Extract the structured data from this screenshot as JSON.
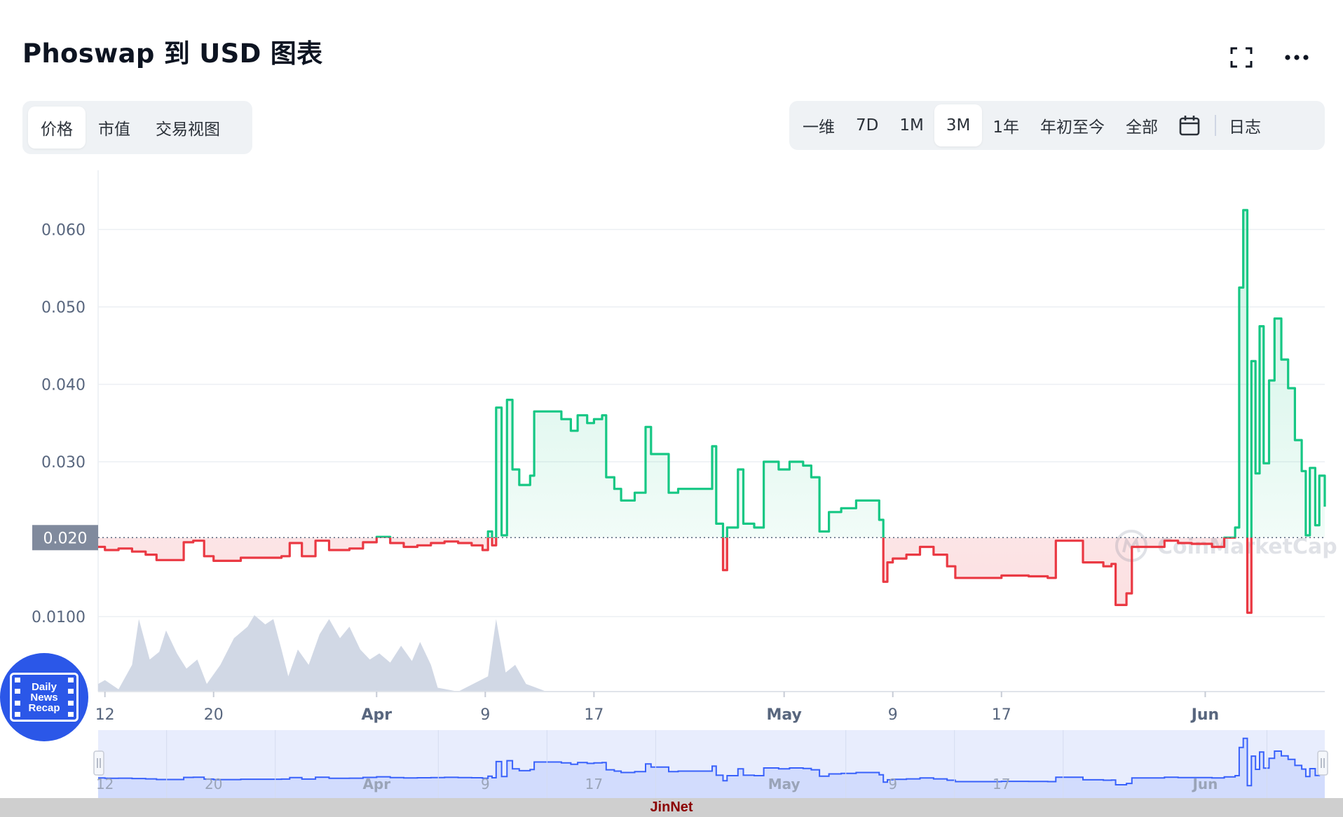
{
  "header": {
    "title": "Phoswap 到 USD 图表",
    "icons": [
      "fullscreen-icon",
      "more-icon"
    ]
  },
  "view_tabs": [
    {
      "label": "价格",
      "active": true
    },
    {
      "label": "市值",
      "active": false
    },
    {
      "label": "交易视图",
      "active": false
    }
  ],
  "range_tabs": [
    {
      "label": "一维",
      "active": false
    },
    {
      "label": "7D",
      "active": false
    },
    {
      "label": "1M",
      "active": false
    },
    {
      "label": "3M",
      "active": true
    },
    {
      "label": "1年",
      "active": false
    },
    {
      "label": "年初至今",
      "active": false
    },
    {
      "label": "全部",
      "active": false
    }
  ],
  "range_extra": {
    "calendar_icon": "calendar-icon",
    "log_label": "日志"
  },
  "chart_data": {
    "type": "line",
    "watermark": "CoinMarketCap",
    "baseline_price": 0.0202,
    "baseline_label": "0.020",
    "colors": {
      "up": "#16c784",
      "down": "#ea3943",
      "volume": "#cfd6e4",
      "navigator": "#3861fb"
    },
    "y_ticks": [
      {
        "value": 0.06,
        "label": "0.060"
      },
      {
        "value": 0.05,
        "label": "0.050"
      },
      {
        "value": 0.04,
        "label": "0.040"
      },
      {
        "value": 0.03,
        "label": "0.030"
      },
      {
        "value": 0.01,
        "label": "0.0100"
      }
    ],
    "x_ticks": [
      {
        "day": 12,
        "label": "12",
        "bold": false
      },
      {
        "day": 20,
        "label": "20",
        "bold": false
      },
      {
        "day": 32,
        "label": "Apr",
        "bold": true
      },
      {
        "day": 40,
        "label": "9",
        "bold": false
      },
      {
        "day": 48,
        "label": "17",
        "bold": false
      },
      {
        "day": 62,
        "label": "May",
        "bold": true
      },
      {
        "day": 70,
        "label": "9",
        "bold": false
      },
      {
        "day": 78,
        "label": "17",
        "bold": false
      },
      {
        "day": 93,
        "label": "Jun",
        "bold": true
      }
    ],
    "price": [
      [
        11.5,
        0.019
      ],
      [
        12,
        0.0186
      ],
      [
        13,
        0.0188
      ],
      [
        14,
        0.0184
      ],
      [
        15,
        0.018
      ],
      [
        15.8,
        0.0173
      ],
      [
        17,
        0.0173
      ],
      [
        17.8,
        0.0196
      ],
      [
        18.5,
        0.0198
      ],
      [
        19.3,
        0.0178
      ],
      [
        20,
        0.0172
      ],
      [
        22,
        0.0176
      ],
      [
        24,
        0.0176
      ],
      [
        25,
        0.0178
      ],
      [
        25.6,
        0.0195
      ],
      [
        26.5,
        0.0178
      ],
      [
        27.5,
        0.0198
      ],
      [
        28.5,
        0.0186
      ],
      [
        30,
        0.0188
      ],
      [
        31,
        0.0196
      ],
      [
        32,
        0.0203
      ],
      [
        33,
        0.0195
      ],
      [
        34,
        0.019
      ],
      [
        35,
        0.0192
      ],
      [
        36,
        0.0195
      ],
      [
        37,
        0.0197
      ],
      [
        38,
        0.0195
      ],
      [
        39,
        0.0192
      ],
      [
        39.8,
        0.0186
      ],
      [
        40.2,
        0.021
      ],
      [
        40.5,
        0.0192
      ],
      [
        40.8,
        0.037
      ],
      [
        41.2,
        0.0205
      ],
      [
        41.6,
        0.038
      ],
      [
        42,
        0.029
      ],
      [
        42.5,
        0.027
      ],
      [
        43.3,
        0.0282
      ],
      [
        43.6,
        0.0365
      ],
      [
        44.8,
        0.0365
      ],
      [
        45.6,
        0.0355
      ],
      [
        46.3,
        0.034
      ],
      [
        46.8,
        0.036
      ],
      [
        47.5,
        0.035
      ],
      [
        48,
        0.0355
      ],
      [
        48.6,
        0.036
      ],
      [
        48.9,
        0.028
      ],
      [
        49.5,
        0.0265
      ],
      [
        50,
        0.025
      ],
      [
        51,
        0.026
      ],
      [
        51.8,
        0.0345
      ],
      [
        52.2,
        0.031
      ],
      [
        53,
        0.031
      ],
      [
        53.5,
        0.026
      ],
      [
        54.2,
        0.0265
      ],
      [
        55.3,
        0.0265
      ],
      [
        56.5,
        0.0265
      ],
      [
        56.7,
        0.032
      ],
      [
        57,
        0.022
      ],
      [
        57.5,
        0.016
      ],
      [
        57.8,
        0.0215
      ],
      [
        58.6,
        0.029
      ],
      [
        59,
        0.022
      ],
      [
        59.8,
        0.0215
      ],
      [
        60.5,
        0.03
      ],
      [
        61.6,
        0.029
      ],
      [
        62.4,
        0.03
      ],
      [
        63.4,
        0.0295
      ],
      [
        64,
        0.028
      ],
      [
        64.6,
        0.021
      ],
      [
        65.3,
        0.0235
      ],
      [
        66.2,
        0.024
      ],
      [
        67.3,
        0.025
      ],
      [
        68.7,
        0.025
      ],
      [
        69,
        0.0225
      ],
      [
        69.3,
        0.0145
      ],
      [
        69.6,
        0.017
      ],
      [
        70,
        0.0175
      ],
      [
        71,
        0.018
      ],
      [
        72,
        0.019
      ],
      [
        73,
        0.018
      ],
      [
        74,
        0.0165
      ],
      [
        74.6,
        0.015
      ],
      [
        76,
        0.015
      ],
      [
        78,
        0.0153
      ],
      [
        80,
        0.0152
      ],
      [
        81.4,
        0.015
      ],
      [
        82,
        0.0198
      ],
      [
        83.4,
        0.0198
      ],
      [
        84,
        0.017
      ],
      [
        85.5,
        0.0165
      ],
      [
        86.1,
        0.0168
      ],
      [
        86.4,
        0.0115
      ],
      [
        87.2,
        0.013
      ],
      [
        87.6,
        0.019
      ],
      [
        88.6,
        0.019
      ],
      [
        90,
        0.0198
      ],
      [
        91,
        0.0195
      ],
      [
        92,
        0.0194
      ],
      [
        93.5,
        0.019
      ],
      [
        94.4,
        0.0202
      ],
      [
        95.2,
        0.0215
      ],
      [
        95.5,
        0.0525
      ],
      [
        95.8,
        0.0625
      ],
      [
        96.1,
        0.0105
      ],
      [
        96.4,
        0.043
      ],
      [
        96.7,
        0.0285
      ],
      [
        97,
        0.0475
      ],
      [
        97.3,
        0.0298
      ],
      [
        97.7,
        0.0405
      ],
      [
        98.1,
        0.0485
      ],
      [
        98.6,
        0.0432
      ],
      [
        99.1,
        0.0395
      ],
      [
        99.6,
        0.0328
      ],
      [
        100.1,
        0.0288
      ],
      [
        100.4,
        0.0205
      ],
      [
        100.7,
        0.0292
      ],
      [
        101.1,
        0.0218
      ],
      [
        101.4,
        0.0282
      ],
      [
        101.8,
        0.0242
      ]
    ],
    "volume": [
      [
        11.5,
        0.1
      ],
      [
        12,
        0.15
      ],
      [
        13,
        0.03
      ],
      [
        14,
        0.35
      ],
      [
        14.5,
        0.95
      ],
      [
        15.3,
        0.42
      ],
      [
        16,
        0.52
      ],
      [
        16.5,
        0.8
      ],
      [
        17.3,
        0.5
      ],
      [
        18,
        0.3
      ],
      [
        18.8,
        0.42
      ],
      [
        19.5,
        0.1
      ],
      [
        20.5,
        0.35
      ],
      [
        21.5,
        0.7
      ],
      [
        22.5,
        0.85
      ],
      [
        23,
        1.0
      ],
      [
        23.8,
        0.88
      ],
      [
        24.4,
        0.95
      ],
      [
        25,
        0.55
      ],
      [
        25.5,
        0.2
      ],
      [
        26.2,
        0.55
      ],
      [
        27,
        0.35
      ],
      [
        27.8,
        0.75
      ],
      [
        28.5,
        0.95
      ],
      [
        29.3,
        0.7
      ],
      [
        30,
        0.85
      ],
      [
        30.8,
        0.55
      ],
      [
        31.5,
        0.42
      ],
      [
        32.2,
        0.5
      ],
      [
        33,
        0.38
      ],
      [
        33.8,
        0.6
      ],
      [
        34.6,
        0.4
      ],
      [
        35.2,
        0.65
      ],
      [
        36,
        0.35
      ],
      [
        36.5,
        0.05
      ],
      [
        38,
        0.0
      ],
      [
        40.2,
        0.2
      ],
      [
        40.8,
        0.95
      ],
      [
        41.5,
        0.25
      ],
      [
        42.2,
        0.35
      ],
      [
        43,
        0.1
      ],
      [
        44.5,
        0.0
      ],
      [
        101.8,
        0.0
      ]
    ],
    "navigator_labels": [
      "12",
      "20",
      "Apr",
      "9",
      "17",
      "May",
      "9",
      "17",
      "Jun"
    ]
  },
  "footer_text": "JinNet",
  "badge": {
    "line1": "Daily",
    "line2": "News",
    "line3": "Recap"
  }
}
